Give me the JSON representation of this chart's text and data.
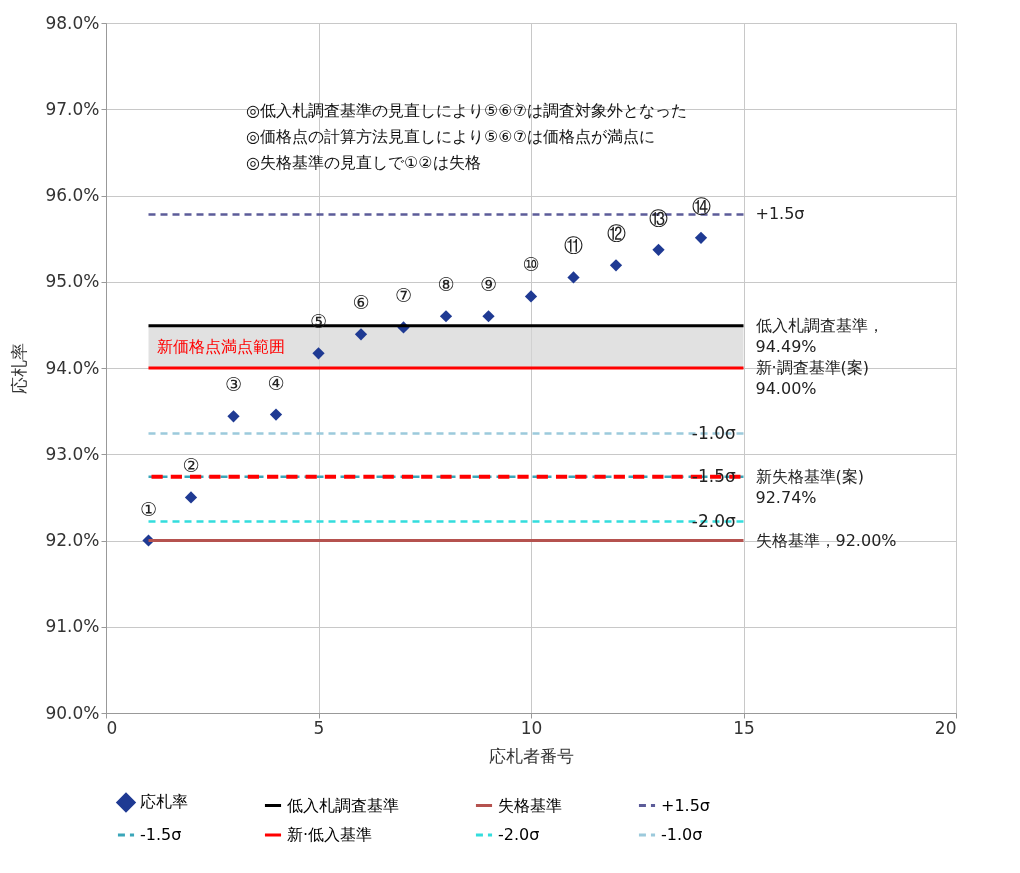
{
  "chart_data": {
    "type": "scatter",
    "xlabel": "応札者番号",
    "ylabel": "応札率",
    "xlim": [
      0,
      20
    ],
    "xticks": [
      0,
      5,
      10,
      15,
      20
    ],
    "ylim": [
      90,
      98
    ],
    "yticks": [
      {
        "value": 90,
        "label": "90.0%"
      },
      {
        "value": 91,
        "label": "91.0%"
      },
      {
        "value": 92,
        "label": "92.0%"
      },
      {
        "value": 93,
        "label": "93.0%"
      },
      {
        "value": 94,
        "label": "94.0%"
      },
      {
        "value": 95,
        "label": "95.0%"
      },
      {
        "value": 96,
        "label": "96.0%"
      },
      {
        "value": 97,
        "label": "97.0%"
      },
      {
        "value": 98,
        "label": "98.0%"
      }
    ],
    "grid": true,
    "legend": "bottom",
    "series": [
      {
        "name": "応札率",
        "marker": "diamond",
        "color": "#1f3a93",
        "x": [
          1,
          2,
          3,
          4,
          5,
          6,
          7,
          8,
          9,
          10,
          11,
          12,
          13,
          14
        ],
        "values": [
          92.0,
          92.5,
          93.44,
          93.46,
          94.17,
          94.39,
          94.47,
          94.6,
          94.6,
          94.83,
          95.05,
          95.19,
          95.37,
          95.51
        ]
      },
      {
        "name": "低入札調査基準",
        "type": "line",
        "line_style": "solid",
        "color": "#000000",
        "x": [
          1,
          15
        ],
        "values": [
          94.49,
          94.49
        ]
      },
      {
        "name": "失格基準",
        "type": "line",
        "line_style": "solid",
        "color": "#b5524f",
        "x": [
          1,
          15
        ],
        "values": [
          92.0,
          92.0
        ]
      },
      {
        "name": "+1.5σ",
        "type": "line",
        "line_style": "dashed",
        "color": "#5c5c99",
        "x": [
          1,
          15
        ],
        "values": [
          95.78,
          95.78
        ]
      },
      {
        "name": "-1.5σ",
        "type": "line",
        "line_style": "dashed",
        "color": "#3aa6b9",
        "x": [
          1,
          15
        ],
        "values": [
          92.74,
          92.74
        ]
      },
      {
        "type": "line",
        "line_style": "dashed",
        "color": "#ff0000",
        "x": [
          1,
          15
        ],
        "values": [
          92.74,
          92.74
        ]
      },
      {
        "name": "新·低入基準",
        "type": "line",
        "line_style": "solid",
        "color": "#ff0000",
        "x": [
          1,
          15
        ],
        "values": [
          94.0,
          94.0
        ]
      },
      {
        "name": "-2.0σ",
        "type": "line",
        "line_style": "dashed",
        "color": "#33dddd",
        "x": [
          1,
          15
        ],
        "values": [
          92.22,
          92.22
        ]
      },
      {
        "name": "-1.0σ",
        "type": "line",
        "line_style": "dashed",
        "color": "#9ccadc",
        "x": [
          1,
          15
        ],
        "values": [
          93.24,
          93.24
        ]
      }
    ],
    "bands": [
      {
        "axis": "y",
        "from": 94.0,
        "to": 94.49,
        "label": "新価格点満点範囲"
      }
    ],
    "annotations": [
      "◎低入札調査基準の見直しにより⑤⑥⑦は調査対象外となった",
      "◎価格点の計算方法見直しにより⑤⑥⑦は価格点が満点に",
      "◎失格基準の見直しで①②は失格",
      {
        "text": "①",
        "x": 1,
        "y": 92.0
      },
      {
        "text": "②",
        "x": 2,
        "y": 92.5
      },
      {
        "text": "③",
        "x": 3,
        "y": 93.44
      },
      {
        "text": "④",
        "x": 4,
        "y": 93.46
      },
      {
        "text": "⑤",
        "x": 5,
        "y": 94.17
      },
      {
        "text": "⑥",
        "x": 6,
        "y": 94.39
      },
      {
        "text": "⑦",
        "x": 7,
        "y": 94.47
      },
      {
        "text": "⑧",
        "x": 8,
        "y": 94.6
      },
      {
        "text": "⑨",
        "x": 9,
        "y": 94.6
      },
      {
        "text": "⑩",
        "x": 10,
        "y": 94.83
      },
      {
        "text": "⑪",
        "x": 11,
        "y": 95.05
      },
      {
        "text": "⑫",
        "x": 12,
        "y": 95.19
      },
      {
        "text": "⑬",
        "x": 13,
        "y": 95.37
      },
      {
        "text": "⑭",
        "x": 14,
        "y": 95.51
      },
      {
        "text": "+1.5σ",
        "x": 15,
        "y": 95.78
      },
      {
        "text": "低入札調査基準，\n94.49%",
        "x": 15,
        "y": 94.49
      },
      {
        "text": "新·調査基準(案)\n94.00%",
        "x": 15,
        "y": 94.0
      },
      {
        "text": "-1.0σ",
        "x": 14.3,
        "y": 93.24
      },
      {
        "text": "-1.5σ",
        "x": 14.3,
        "y": 92.74
      },
      {
        "text": "新失格基準(案)\n92.74%",
        "x": 15,
        "y": 92.74
      },
      {
        "text": "-2.0σ",
        "x": 14.3,
        "y": 92.22
      },
      {
        "text": "失格基準，92.00%",
        "x": 15,
        "y": 92.0
      }
    ]
  }
}
